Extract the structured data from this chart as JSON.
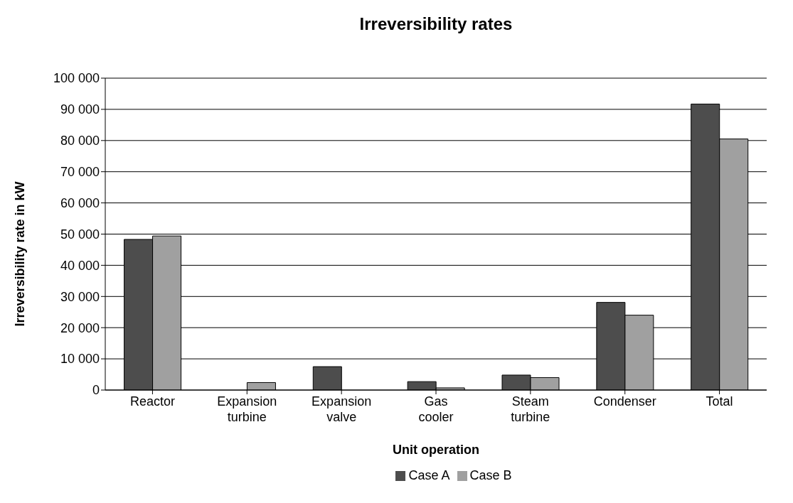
{
  "chart_data": {
    "type": "bar",
    "title": "Irreversibility rates",
    "xlabel": "Unit operation",
    "ylabel": "Irreversibility rate in kW",
    "categories": [
      "Reactor",
      "Expansion turbine",
      "Expansion valve",
      "Gas cooler",
      "Steam turbine",
      "Condenser",
      "Total"
    ],
    "series": [
      {
        "name": "Case A",
        "color": "#4d4d4d",
        "values": [
          48300,
          0,
          7500,
          2700,
          4800,
          28100,
          91700
        ]
      },
      {
        "name": "Case B",
        "color": "#a0a0a0",
        "values": [
          49400,
          2400,
          0,
          700,
          4000,
          24000,
          80500
        ]
      }
    ],
    "ylim": [
      0,
      100000
    ],
    "yticks": [
      0,
      {
        "value": 10000,
        "label": "10 000"
      },
      {
        "value": 20000,
        "label": "20 000"
      },
      {
        "value": 30000,
        "label": "30 000"
      },
      {
        "value": 40000,
        "label": "40 000"
      },
      {
        "value": 50000,
        "label": "50 000"
      },
      {
        "value": 60000,
        "label": "60 000"
      },
      {
        "value": 70000,
        "label": "70 000"
      },
      {
        "value": 80000,
        "label": "80 000"
      },
      {
        "value": 90000,
        "label": "90 000"
      },
      {
        "value": 100000,
        "label": "100 000"
      }
    ],
    "grid": "y",
    "legend": "bottom"
  }
}
